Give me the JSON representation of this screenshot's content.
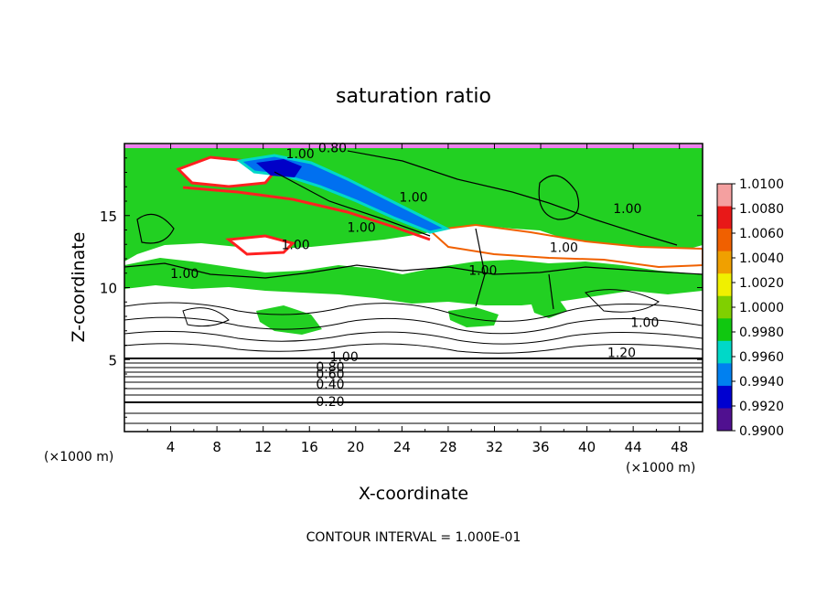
{
  "chart_data": {
    "type": "heatmap",
    "title": "saturation ratio",
    "xlabel": "X-coordinate",
    "ylabel": "Z-coordinate",
    "x_unit": "(×1000 m)",
    "y_unit": "(×1000 m)",
    "xlim": [
      0,
      50
    ],
    "ylim": [
      0,
      20
    ],
    "x_ticks": [
      4,
      8,
      12,
      16,
      20,
      24,
      28,
      32,
      36,
      40,
      44,
      48
    ],
    "y_ticks": [
      5,
      10,
      15
    ],
    "contour_interval_text": "CONTOUR INTERVAL = 1.000E-01",
    "colorbar": {
      "labels": [
        "1.0100",
        "1.0080",
        "1.0060",
        "1.0040",
        "1.0020",
        "1.0000",
        "0.9980",
        "0.9960",
        "0.9940",
        "0.9920",
        "0.9900"
      ],
      "colors": [
        "#f4a0a0",
        "#e81818",
        "#f06000",
        "#f0a000",
        "#f0f000",
        "#80d000",
        "#10c810",
        "#00d8c8",
        "#0080f0",
        "#0000d0",
        "#501090"
      ]
    },
    "contour_labels": [
      {
        "text": "0.80",
        "x": 18.0,
        "z": 19.7
      },
      {
        "text": "1.00",
        "x": 15.2,
        "z": 19.3
      },
      {
        "text": "1.00",
        "x": 25.0,
        "z": 16.3
      },
      {
        "text": "1.00",
        "x": 20.5,
        "z": 14.2
      },
      {
        "text": "1.00",
        "x": 14.8,
        "z": 13.0
      },
      {
        "text": "1.00",
        "x": 38.0,
        "z": 12.8
      },
      {
        "text": "1.00",
        "x": 43.5,
        "z": 15.5
      },
      {
        "text": "1.00",
        "x": 31.0,
        "z": 11.2
      },
      {
        "text": "1.00",
        "x": 5.2,
        "z": 11.0
      },
      {
        "text": "1.00",
        "x": 45.0,
        "z": 7.6
      },
      {
        "text": "1.20",
        "x": 43.0,
        "z": 5.5
      },
      {
        "text": "1.00",
        "x": 19.0,
        "z": 5.2
      },
      {
        "text": "0.80",
        "x": 17.8,
        "z": 4.5
      },
      {
        "text": "0.60",
        "x": 17.8,
        "z": 4.0
      },
      {
        "text": "0.40",
        "x": 17.8,
        "z": 3.3
      },
      {
        "text": "0.20",
        "x": 17.8,
        "z": 2.1
      }
    ]
  }
}
